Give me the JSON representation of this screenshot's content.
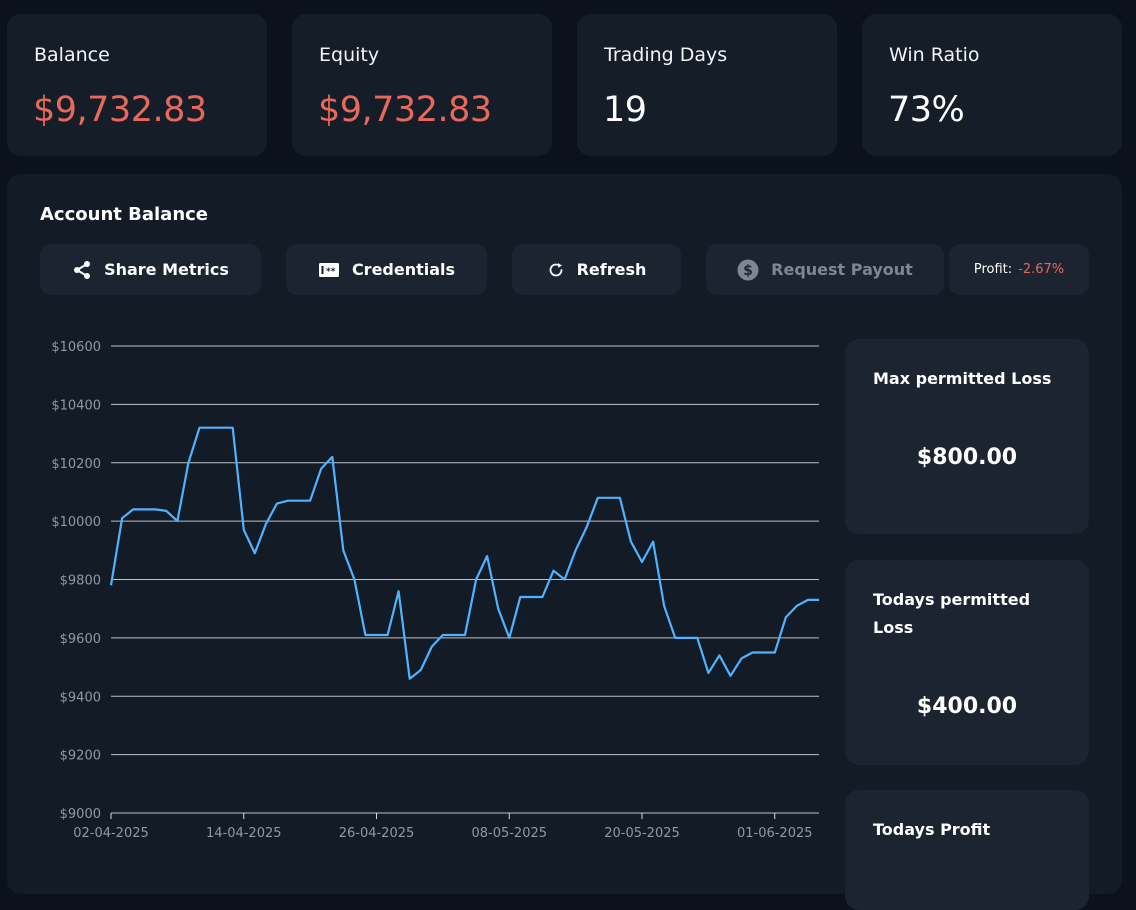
{
  "stats": [
    {
      "label": "Balance",
      "value": "$9,732.83"
    },
    {
      "label": "Equity",
      "value": "$9,732.83"
    },
    {
      "label": "Trading Days",
      "value": "19"
    },
    {
      "label": "Win Ratio",
      "value": "73%"
    }
  ],
  "panel": {
    "title": "Account Balance",
    "buttons": {
      "share": "Share Metrics",
      "credentials": "Credentials",
      "refresh": "Refresh",
      "payout": "Request Payout"
    },
    "profit_label": "Profit:",
    "profit_value": "-2.67%"
  },
  "side_cards": [
    {
      "title": "Max permitted Loss",
      "value": "$800.00"
    },
    {
      "title": "Todays permitted Loss",
      "value": "$400.00"
    },
    {
      "title": "Todays Profit",
      "value": ""
    }
  ],
  "colors": {
    "negative": "#e8695a",
    "line": "#4fb3ff",
    "card_bg": "#151d28"
  },
  "chart_data": {
    "type": "line",
    "title": "",
    "xlabel": "",
    "ylabel": "",
    "ylim": [
      9000,
      10600
    ],
    "yticks": [
      10600,
      10400,
      10200,
      10000,
      9800,
      9600,
      9400,
      9200,
      9000
    ],
    "ytick_labels": [
      "$10600",
      "$10400",
      "$10200",
      "$10000",
      "$9800",
      "$9600",
      "$9400",
      "$9200",
      "$9000"
    ],
    "xlim": [
      "2025-04-02",
      "2025-06-05"
    ],
    "xticks": [
      "2025-04-02",
      "2025-04-14",
      "2025-04-26",
      "2025-05-08",
      "2025-05-20",
      "2025-06-01"
    ],
    "xtick_labels": [
      "02-04-2025",
      "14-04-2025",
      "26-04-2025",
      "08-05-2025",
      "20-05-2025",
      "01-06-2025"
    ],
    "grid": true,
    "series": [
      {
        "x": [
          "2025-04-02",
          "2025-04-03",
          "2025-04-04",
          "2025-04-05",
          "2025-04-06",
          "2025-04-07",
          "2025-04-08",
          "2025-04-09",
          "2025-04-10",
          "2025-04-11",
          "2025-04-12",
          "2025-04-13",
          "2025-04-14",
          "2025-04-15",
          "2025-04-16",
          "2025-04-17",
          "2025-04-18",
          "2025-04-19",
          "2025-04-20",
          "2025-04-21",
          "2025-04-22",
          "2025-04-23",
          "2025-04-24",
          "2025-04-25",
          "2025-04-26",
          "2025-04-27",
          "2025-04-28",
          "2025-04-29",
          "2025-04-30",
          "2025-05-01",
          "2025-05-02",
          "2025-05-03",
          "2025-05-04",
          "2025-05-05",
          "2025-05-06",
          "2025-05-07",
          "2025-05-08",
          "2025-05-09",
          "2025-05-10",
          "2025-05-11",
          "2025-05-12",
          "2025-05-13",
          "2025-05-14",
          "2025-05-15",
          "2025-05-16",
          "2025-05-17",
          "2025-05-18",
          "2025-05-19",
          "2025-05-20",
          "2025-05-21",
          "2025-05-22",
          "2025-05-23",
          "2025-05-24",
          "2025-05-25",
          "2025-05-26",
          "2025-05-27",
          "2025-05-28",
          "2025-05-29",
          "2025-05-30",
          "2025-05-31",
          "2025-06-01",
          "2025-06-02",
          "2025-06-03",
          "2025-06-04",
          "2025-06-05"
        ],
        "values": [
          9780,
          10010,
          10040,
          10040,
          10040,
          10035,
          10000,
          10200,
          10320,
          10320,
          10320,
          10320,
          9970,
          9890,
          9990,
          10060,
          10070,
          10070,
          10070,
          10180,
          10220,
          9900,
          9800,
          9610,
          9610,
          9610,
          9760,
          9460,
          9490,
          9570,
          9610,
          9610,
          9610,
          9800,
          9880,
          9700,
          9600,
          9740,
          9740,
          9740,
          9830,
          9800,
          9900,
          9980,
          10080,
          10080,
          10080,
          9930,
          9860,
          9930,
          9710,
          9600,
          9600,
          9600,
          9480,
          9540,
          9470,
          9530,
          9550,
          9550,
          9550,
          9670,
          9710,
          9730,
          9730
        ]
      }
    ]
  }
}
